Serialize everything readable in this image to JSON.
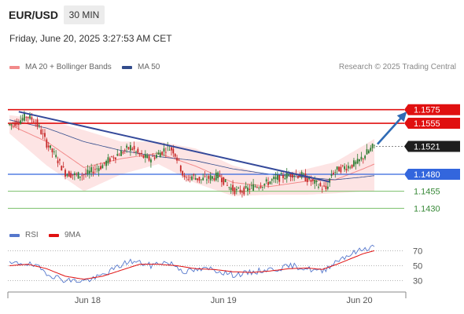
{
  "header": {
    "symbol": "EUR/USD",
    "timeframe": "30 MIN",
    "timestamp": "Friday, June 20, 2025 3:27:53 AM CET",
    "credit": "Research © 2025 Trading Central"
  },
  "legend": {
    "bollinger": "MA 20 + Bollinger Bands",
    "ma50": "MA 50",
    "rsi": "RSI",
    "rsi_ma": "9MA"
  },
  "colors": {
    "resistance": "#e01010",
    "support_blue": "#3366dd",
    "support_green": "#7abf6a",
    "current": "#1e1e1e",
    "trendline": "#34499a",
    "bollinger_fill": "#fde4e4",
    "ma20": "#f28a8a",
    "ma50": "#334c8c",
    "rsi": "#5577cc",
    "rsi_ma": "#e01010",
    "up_candle": "#2e7d32",
    "down_candle": "#c62828"
  },
  "chart_data": [
    {
      "type": "candlestick",
      "x_tick_labels": [
        "Jun 18",
        "Jun 19",
        "Jun 20"
      ],
      "ylim": [
        1.1405,
        1.1592
      ],
      "levels": [
        {
          "label": "1.1575",
          "value": 1.1575,
          "kind": "resistance"
        },
        {
          "label": "1.1555",
          "value": 1.1555,
          "kind": "resistance"
        },
        {
          "label": "1.1521",
          "value": 1.1521,
          "kind": "current"
        },
        {
          "label": "1.1480",
          "value": 1.148,
          "kind": "support-strong"
        },
        {
          "label": "1.1455",
          "value": 1.1455,
          "kind": "support"
        },
        {
          "label": "1.1430",
          "value": 1.143,
          "kind": "support"
        }
      ],
      "price_anchors": [
        [
          0,
          1.1553
        ],
        [
          5,
          1.1558
        ],
        [
          9,
          1.1566
        ],
        [
          13,
          1.156
        ],
        [
          16,
          1.1548
        ],
        [
          20,
          1.1525
        ],
        [
          25,
          1.1505
        ],
        [
          30,
          1.1482
        ],
        [
          36,
          1.1478
        ],
        [
          42,
          1.1481
        ],
        [
          46,
          1.1488
        ],
        [
          50,
          1.1493
        ],
        [
          55,
          1.1505
        ],
        [
          60,
          1.1512
        ],
        [
          65,
          1.152
        ],
        [
          70,
          1.1508
        ],
        [
          75,
          1.1502
        ],
        [
          80,
          1.151
        ],
        [
          85,
          1.152
        ],
        [
          88,
          1.1515
        ],
        [
          91,
          1.1497
        ],
        [
          94,
          1.1472
        ],
        [
          98,
          1.1477
        ],
        [
          103,
          1.1472
        ],
        [
          108,
          1.1475
        ],
        [
          113,
          1.1478
        ],
        [
          117,
          1.1463
        ],
        [
          122,
          1.1455
        ],
        [
          127,
          1.1457
        ],
        [
          132,
          1.1463
        ],
        [
          137,
          1.1466
        ],
        [
          142,
          1.1472
        ],
        [
          147,
          1.1477
        ],
        [
          152,
          1.1481
        ],
        [
          157,
          1.1478
        ],
        [
          162,
          1.147
        ],
        [
          167,
          1.1462
        ],
        [
          170,
          1.1458
        ],
        [
          173,
          1.1481
        ],
        [
          177,
          1.1488
        ],
        [
          182,
          1.1492
        ],
        [
          187,
          1.1497
        ],
        [
          192,
          1.1512
        ],
        [
          196,
          1.1522
        ]
      ],
      "bollinger_upper": [
        [
          0,
          1.1567
        ],
        [
          20,
          1.156
        ],
        [
          40,
          1.1545
        ],
        [
          60,
          1.1528
        ],
        [
          80,
          1.1528
        ],
        [
          100,
          1.1518
        ],
        [
          120,
          1.1493
        ],
        [
          140,
          1.1478
        ],
        [
          160,
          1.1488
        ],
        [
          175,
          1.1498
        ],
        [
          190,
          1.1522
        ],
        [
          196,
          1.1532
        ]
      ],
      "bollinger_lower": [
        [
          0,
          1.154
        ],
        [
          20,
          1.1493
        ],
        [
          40,
          1.1455
        ],
        [
          60,
          1.148
        ],
        [
          80,
          1.1495
        ],
        [
          100,
          1.1467
        ],
        [
          120,
          1.1448
        ],
        [
          140,
          1.145
        ],
        [
          160,
          1.145
        ],
        [
          175,
          1.1452
        ],
        [
          190,
          1.1455
        ],
        [
          196,
          1.1455
        ]
      ],
      "ma20": [
        [
          0,
          1.1553
        ],
        [
          20,
          1.1528
        ],
        [
          40,
          1.149
        ],
        [
          60,
          1.1503
        ],
        [
          80,
          1.1511
        ],
        [
          100,
          1.1492
        ],
        [
          120,
          1.1468
        ],
        [
          140,
          1.1462
        ],
        [
          160,
          1.147
        ],
        [
          175,
          1.1472
        ],
        [
          190,
          1.1488
        ],
        [
          196,
          1.1495
        ]
      ],
      "ma50": [
        [
          0,
          1.156
        ],
        [
          20,
          1.1548
        ],
        [
          40,
          1.1528
        ],
        [
          60,
          1.1515
        ],
        [
          80,
          1.1506
        ],
        [
          100,
          1.15
        ],
        [
          120,
          1.1488
        ],
        [
          140,
          1.148
        ],
        [
          160,
          1.1475
        ],
        [
          175,
          1.1472
        ],
        [
          190,
          1.1476
        ],
        [
          196,
          1.1478
        ]
      ],
      "trendlines": [
        {
          "x1": 5,
          "y1": 1.1572,
          "x2": 172,
          "y2": 1.1469,
          "style": "solid"
        }
      ],
      "projection": {
        "x1": 196,
        "y1": 1.1522,
        "x2": 212,
        "y2": 1.1575
      }
    },
    {
      "type": "line",
      "title": "RSI",
      "y_tick_labels": [
        "70",
        "50",
        "30"
      ],
      "ylim": [
        15,
        85
      ],
      "rsi_anchors": [
        [
          0,
          52
        ],
        [
          8,
          54
        ],
        [
          15,
          48
        ],
        [
          22,
          38
        ],
        [
          28,
          32
        ],
        [
          34,
          30
        ],
        [
          40,
          30
        ],
        [
          46,
          33
        ],
        [
          52,
          40
        ],
        [
          58,
          48
        ],
        [
          64,
          56
        ],
        [
          70,
          54
        ],
        [
          76,
          50
        ],
        [
          82,
          55
        ],
        [
          88,
          52
        ],
        [
          94,
          42
        ],
        [
          100,
          44
        ],
        [
          108,
          46
        ],
        [
          114,
          42
        ],
        [
          120,
          38
        ],
        [
          128,
          40
        ],
        [
          136,
          44
        ],
        [
          144,
          46
        ],
        [
          152,
          50
        ],
        [
          160,
          46
        ],
        [
          168,
          42
        ],
        [
          172,
          50
        ],
        [
          178,
          60
        ],
        [
          184,
          66
        ],
        [
          190,
          72
        ],
        [
          196,
          76
        ]
      ],
      "rsi_ma_anchors": [
        [
          0,
          50
        ],
        [
          10,
          52
        ],
        [
          20,
          46
        ],
        [
          30,
          36
        ],
        [
          40,
          32
        ],
        [
          50,
          36
        ],
        [
          60,
          44
        ],
        [
          70,
          52
        ],
        [
          80,
          52
        ],
        [
          90,
          50
        ],
        [
          100,
          46
        ],
        [
          110,
          45
        ],
        [
          120,
          42
        ],
        [
          130,
          41
        ],
        [
          140,
          43
        ],
        [
          150,
          46
        ],
        [
          160,
          47
        ],
        [
          168,
          45
        ],
        [
          176,
          52
        ],
        [
          184,
          60
        ],
        [
          190,
          66
        ],
        [
          196,
          70
        ]
      ]
    }
  ]
}
